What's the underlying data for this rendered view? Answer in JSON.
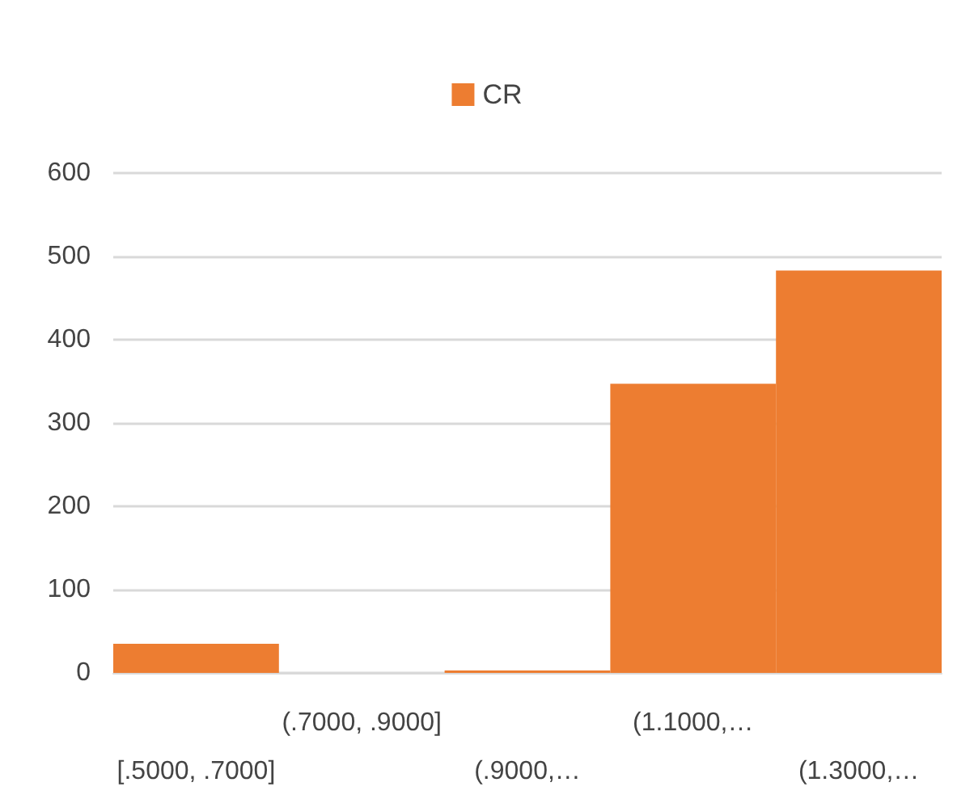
{
  "chart_data": {
    "type": "bar",
    "categories": [
      "[.5000, .7000]",
      "(.7000, .9000]",
      "(.9000,…",
      "(1.1000,…",
      "(1.3000,…"
    ],
    "series": [
      {
        "name": "CR",
        "color": "#ed7d31",
        "values": [
          35,
          0,
          3,
          347,
          483
        ]
      }
    ],
    "ylim": [
      0,
      600
    ],
    "yticks": [
      0,
      100,
      200,
      300,
      400,
      500,
      600
    ],
    "grid": "y",
    "legend": "top"
  }
}
